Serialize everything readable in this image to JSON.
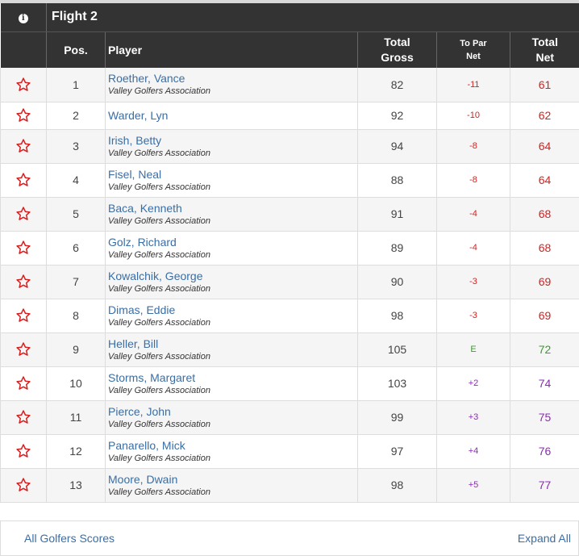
{
  "flight": {
    "title": "Flight 2",
    "info_icon": "info-icon"
  },
  "columns": {
    "pos": "Pos.",
    "player": "Player",
    "gross_1": "Total",
    "gross_2": "Gross",
    "topar_1": "To Par",
    "topar_2": "Net",
    "net_1": "Total",
    "net_2": "Net"
  },
  "rows": [
    {
      "pos": "1",
      "name": "Roether, Vance",
      "club": "Valley Golfers Association",
      "gross": "82",
      "topar": "-11",
      "net": "61",
      "color": "red"
    },
    {
      "pos": "2",
      "name": "Warder, Lyn",
      "club": "",
      "gross": "92",
      "topar": "-10",
      "net": "62",
      "color": "red"
    },
    {
      "pos": "3",
      "name": "Irish, Betty",
      "club": "Valley Golfers Association",
      "gross": "94",
      "topar": "-8",
      "net": "64",
      "color": "red"
    },
    {
      "pos": "4",
      "name": "Fisel, Neal",
      "club": "Valley Golfers Association",
      "gross": "88",
      "topar": "-8",
      "net": "64",
      "color": "red"
    },
    {
      "pos": "5",
      "name": "Baca, Kenneth",
      "club": "Valley Golfers Association",
      "gross": "91",
      "topar": "-4",
      "net": "68",
      "color": "red"
    },
    {
      "pos": "6",
      "name": "Golz, Richard",
      "club": "Valley Golfers Association",
      "gross": "89",
      "topar": "-4",
      "net": "68",
      "color": "red"
    },
    {
      "pos": "7",
      "name": "Kowalchik, George",
      "club": "Valley Golfers Association",
      "gross": "90",
      "topar": "-3",
      "net": "69",
      "color": "red"
    },
    {
      "pos": "8",
      "name": "Dimas, Eddie",
      "club": "Valley Golfers Association",
      "gross": "98",
      "topar": "-3",
      "net": "69",
      "color": "red"
    },
    {
      "pos": "9",
      "name": "Heller, Bill",
      "club": "Valley Golfers Association",
      "gross": "105",
      "topar": "E",
      "net": "72",
      "color": "green"
    },
    {
      "pos": "10",
      "name": "Storms, Margaret",
      "club": "Valley Golfers Association",
      "gross": "103",
      "topar": "+2",
      "net": "74",
      "color": "purple"
    },
    {
      "pos": "11",
      "name": "Pierce, John",
      "club": "Valley Golfers Association",
      "gross": "99",
      "topar": "+3",
      "net": "75",
      "color": "purple"
    },
    {
      "pos": "12",
      "name": "Panarello, Mick",
      "club": "Valley Golfers Association",
      "gross": "97",
      "topar": "+4",
      "net": "76",
      "color": "purple"
    },
    {
      "pos": "13",
      "name": "Moore, Dwain",
      "club": "Valley Golfers Association",
      "gross": "98",
      "topar": "+5",
      "net": "77",
      "color": "purple"
    }
  ],
  "footer": {
    "left_link": "All Golfers Scores",
    "right_link": "Expand All"
  },
  "colors": {
    "header_bg": "#333333",
    "link": "#3a6ea5",
    "under_par": "#d62020",
    "even_par": "#3a9a30",
    "over_par": "#8e2ab5",
    "star": "#d62020"
  }
}
